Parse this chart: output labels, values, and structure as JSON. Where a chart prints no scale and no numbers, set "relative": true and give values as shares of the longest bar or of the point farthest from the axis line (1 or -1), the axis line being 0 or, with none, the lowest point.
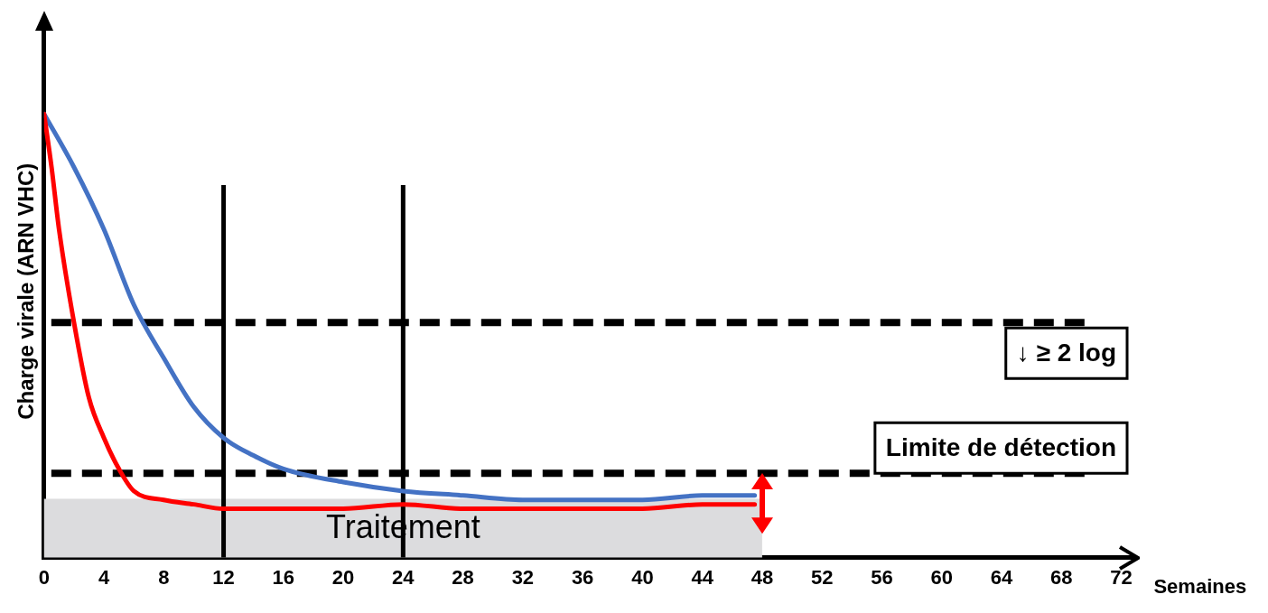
{
  "chart_data": {
    "type": "line",
    "relative": true,
    "xlabel": "Semaines",
    "ylabel": "Charge virale (ARN VHC)",
    "xlim": [
      0,
      73
    ],
    "xticks": [
      0,
      4,
      8,
      12,
      16,
      20,
      24,
      28,
      32,
      36,
      40,
      44,
      48,
      52,
      56,
      60,
      64,
      68,
      72
    ],
    "grid": false,
    "legend": false,
    "marker": "none",
    "line_style": "solid",
    "series": [
      {
        "color": "#ff0000",
        "x": [
          0,
          0.5,
          1,
          2,
          3,
          4,
          5,
          6,
          8,
          10,
          12,
          16,
          20,
          24,
          28,
          32,
          36,
          40,
          44,
          47.5
        ],
        "values": [
          1,
          0.88,
          0.74,
          0.53,
          0.36,
          0.27,
          0.2,
          0.15,
          0.13,
          0.12,
          0.11,
          0.11,
          0.11,
          0.12,
          0.11,
          0.11,
          0.11,
          0.11,
          0.12,
          0.12
        ]
      },
      {
        "color": "#4472c4",
        "x": [
          0,
          2,
          4,
          6,
          8,
          10,
          12,
          14,
          16,
          20,
          24,
          28,
          32,
          36,
          40,
          44,
          47.5
        ],
        "values": [
          1,
          0.88,
          0.74,
          0.57,
          0.45,
          0.34,
          0.27,
          0.23,
          0.2,
          0.17,
          0.15,
          0.14,
          0.13,
          0.13,
          0.13,
          0.14,
          0.14
        ]
      }
    ],
    "ref_lines": [
      {
        "axis": "x",
        "value": 12,
        "label": null,
        "color": "#000000",
        "line_style": "solid"
      },
      {
        "axis": "x",
        "value": 24,
        "label": null,
        "color": "#000000",
        "line_style": "solid"
      },
      {
        "axis": "y",
        "value": 0.53,
        "label": "↓ ≥ 2 log",
        "color": "#000000",
        "line_style": "dashed"
      },
      {
        "axis": "y",
        "value": 0.19,
        "label": "Limite de détection",
        "color": "#000000",
        "line_style": "dashed"
      }
    ],
    "bands": [
      {
        "axis": "x",
        "from": 0,
        "to": 48,
        "label": "Traitement",
        "color": "#dcdcde"
      }
    ]
  }
}
